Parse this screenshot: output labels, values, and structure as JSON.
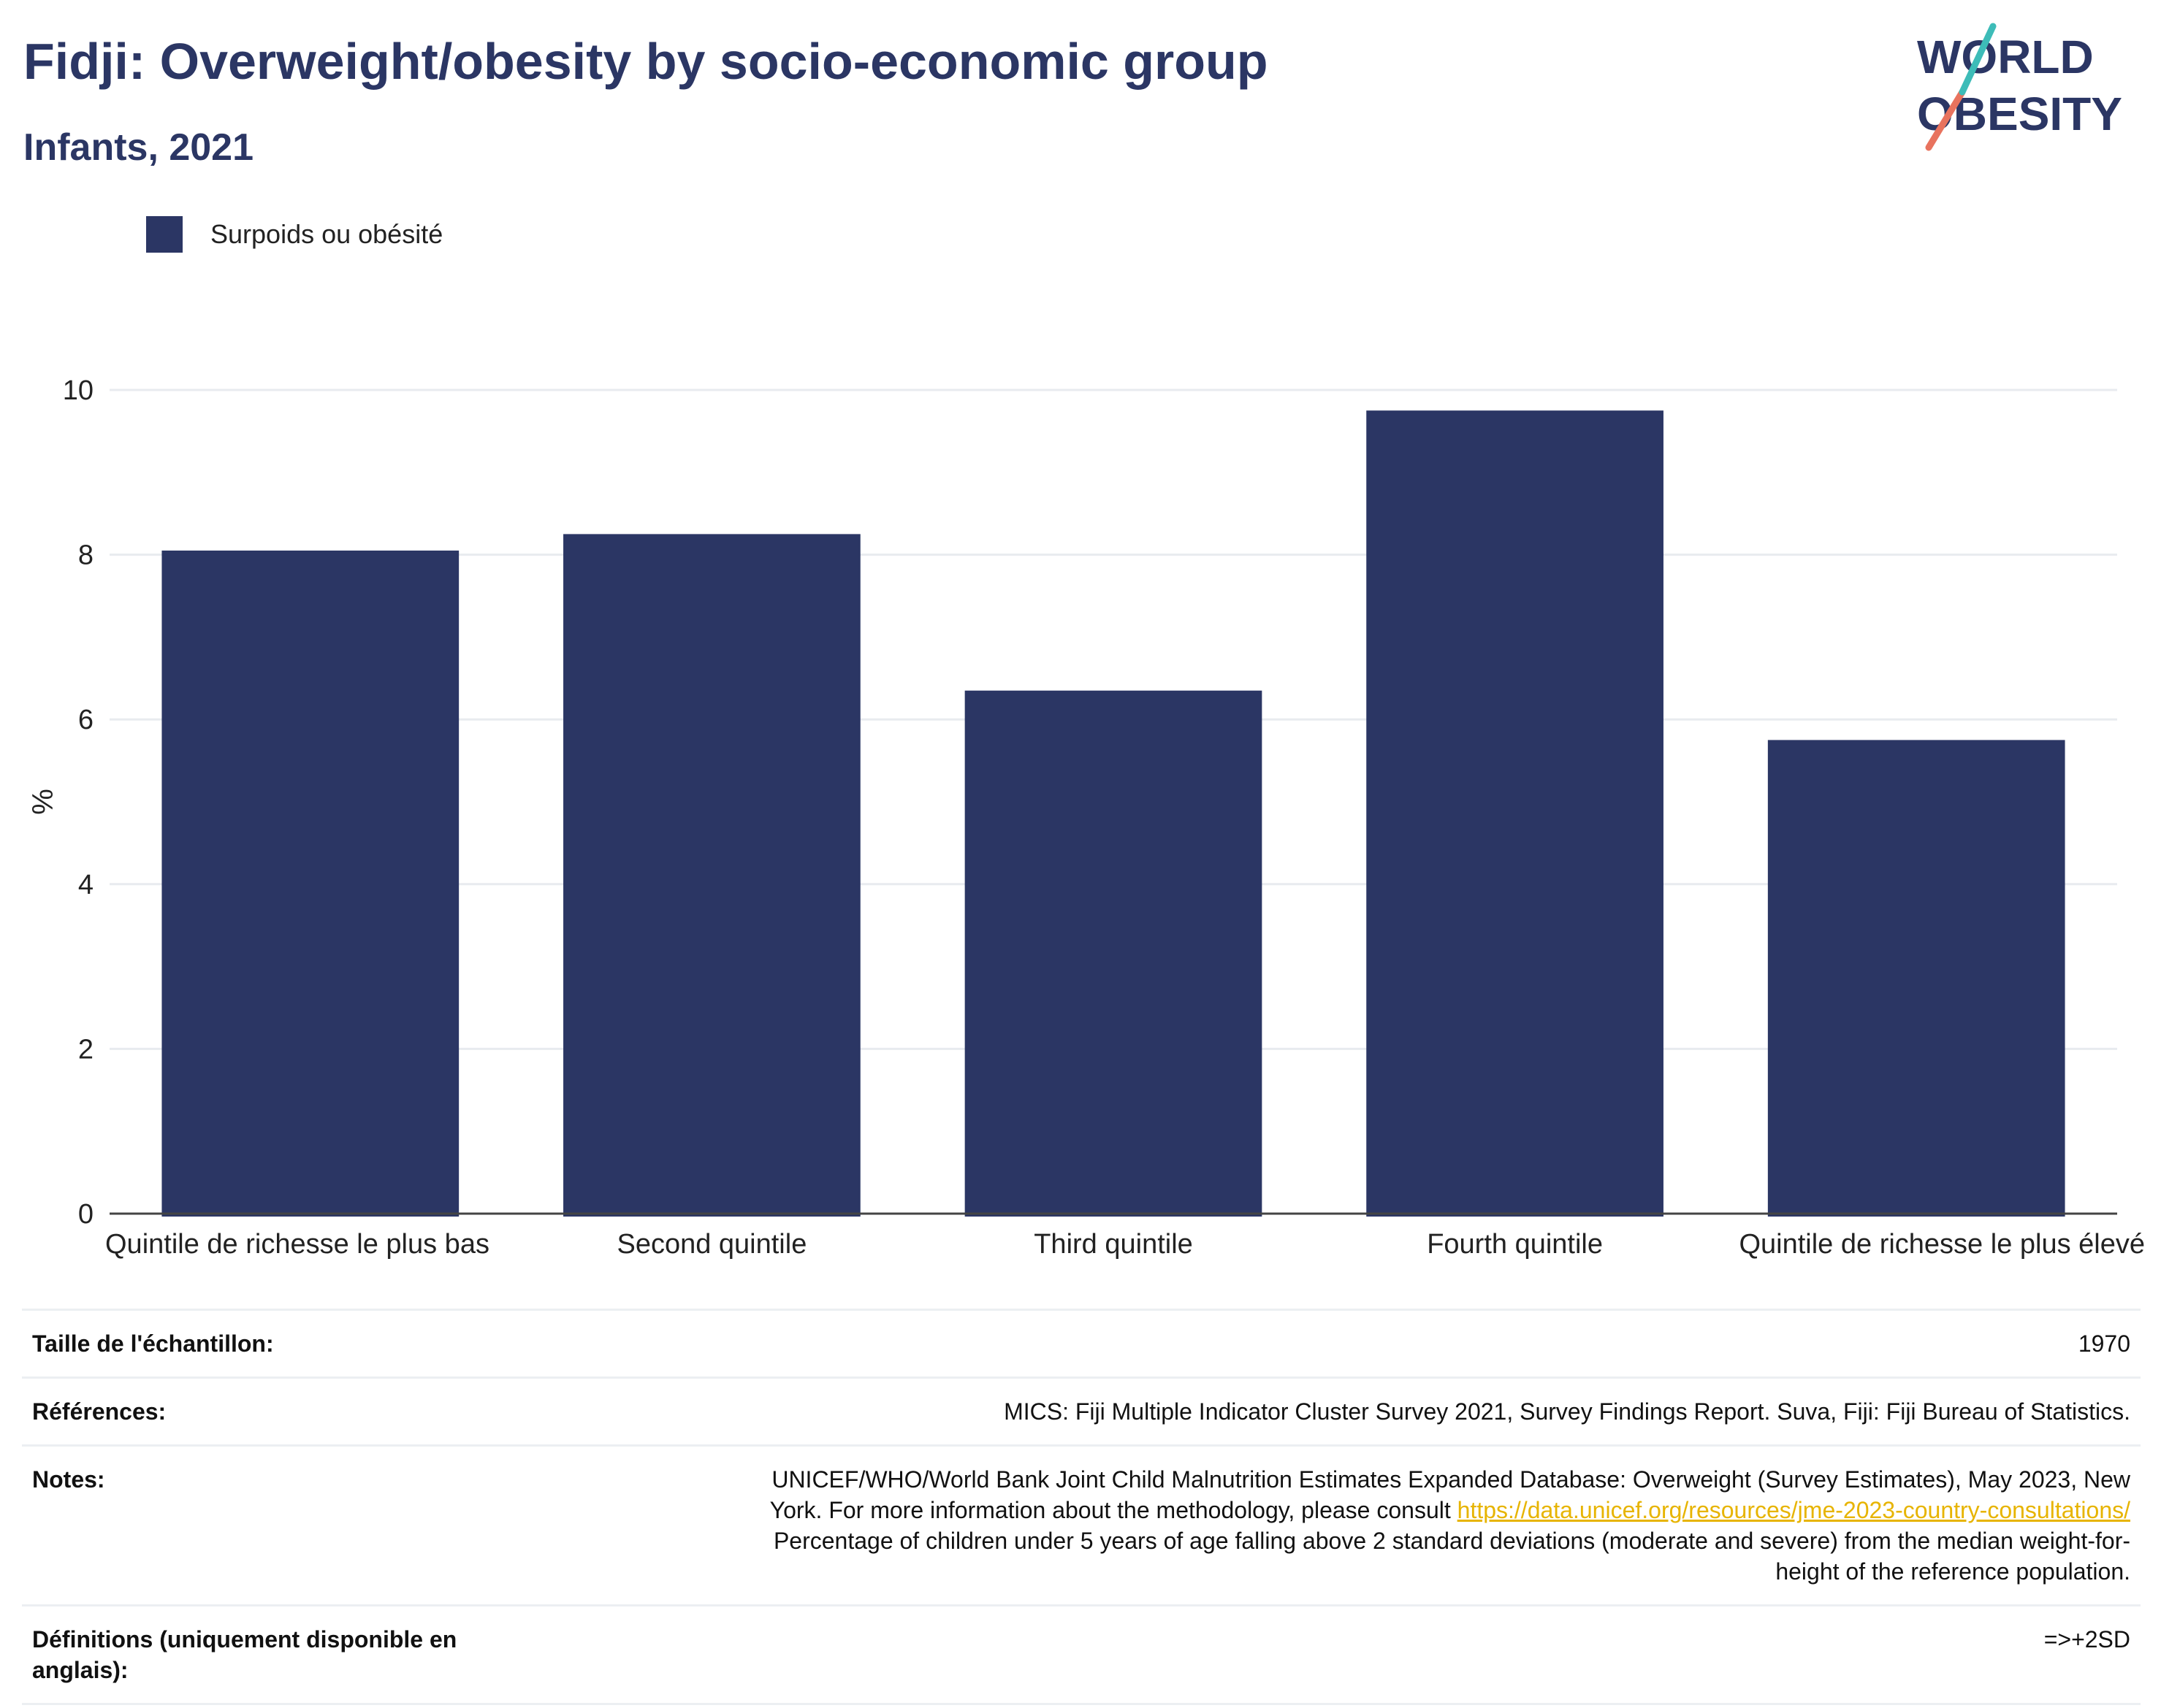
{
  "header": {
    "title": "Fidji: Overweight/obesity by socio-economic group",
    "subtitle": "Infants, 2021"
  },
  "logo": {
    "line1": "WORLD",
    "line2": "OBESITY",
    "color_navy": "#2b3664",
    "color_teal": "#3dbcb8",
    "color_coral": "#e8735e"
  },
  "chart_data": {
    "type": "bar",
    "categories": [
      "Quintile de richesse le plus bas",
      "Second quintile",
      "Third quintile",
      "Fourth quintile",
      "Quintile de richesse le plus élevé"
    ],
    "series": [
      {
        "name": "Surpoids ou obésité",
        "values": [
          8.05,
          8.25,
          6.35,
          9.75,
          5.75
        ],
        "color": "#2b3664"
      }
    ],
    "ylabel": "%",
    "ylim": [
      0,
      10
    ],
    "yticks": [
      "0",
      "2",
      "4",
      "6",
      "8",
      "10"
    ],
    "grid": true,
    "legend": "top-left"
  },
  "meta": {
    "sample_label": "Taille de l'échantillon:",
    "sample_value": "1970",
    "references_label": "Références:",
    "references_value": "MICS: Fiji Multiple Indicator Cluster Survey 2021, Survey Findings Report. Suva, Fiji: Fiji Bureau of Statistics.",
    "notes_label": "Notes:",
    "notes_line1": "UNICEF/WHO/World Bank Joint Child Malnutrition Estimates Expanded Database: Overweight (Survey Estimates), May 2023, New",
    "notes_line2_prefix": "York. For more information about the methodology, please consult ",
    "notes_link": "https://data.unicef.org/resources/jme-2023-country-consultations/",
    "notes_line3": "Percentage of children under 5 years of age falling above 2 standard deviations (moderate and severe) from the median weight-for-",
    "notes_line4": "height of the reference population.",
    "definitions_label": "Définitions (uniquement disponible en anglais):",
    "definitions_value": "=>+2SD"
  }
}
